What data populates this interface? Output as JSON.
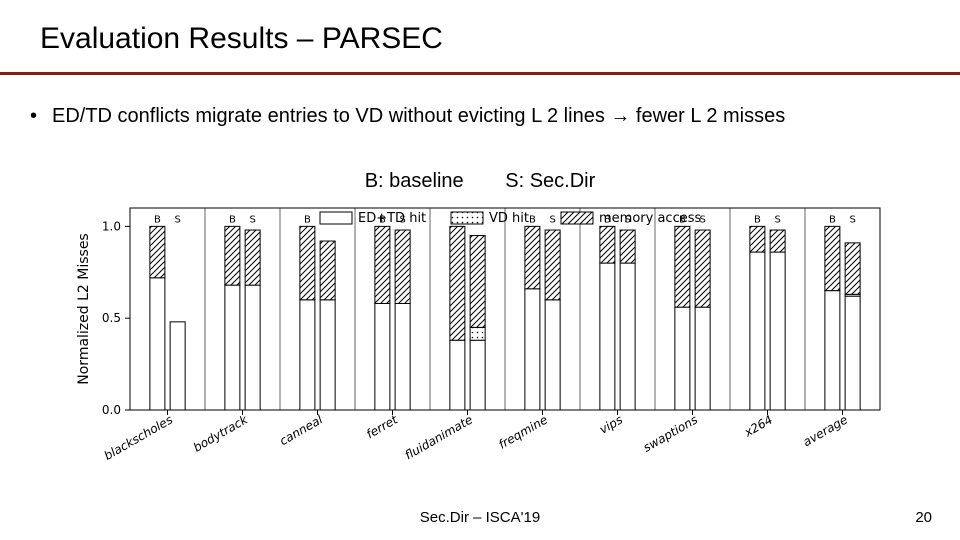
{
  "title": "Evaluation Results – PARSEC",
  "bullet": "ED/TD conflicts migrate entries to VD without evicting L 2 lines → fewer L 2 misses",
  "key": {
    "b": "B: baseline",
    "s": "S: Sec.Dir"
  },
  "footer": {
    "center": "Sec.Dir – ISCA'19",
    "page": "20"
  },
  "accent": "#8b1a1a",
  "chart": {
    "type": "stacked-bar",
    "ylabel": "Normalized L2 Misses",
    "ylim": [
      0.0,
      1.1
    ],
    "yticks": [
      0.0,
      0.5,
      1.0
    ],
    "legend": [
      "ED+TD hit",
      "VD hit",
      "memory access"
    ],
    "legend_fontsize": 13,
    "tick_fontsize": 12,
    "xtick_fontsize": 12,
    "bs_fontsize": 10,
    "bar_width": 0.4,
    "bar_gap": 0.07,
    "border_color": "#000000",
    "background_color": "#ffffff",
    "fill_color": "#ffffff",
    "pattern_colors": {
      "hatch": "#000000",
      "dots": "#000000"
    },
    "xlabels": [
      "blackscholes",
      "bodytrack",
      "canneal",
      "ferret",
      "fluidanimate",
      "freqmine",
      "vips",
      "swaptions",
      "x264",
      "average"
    ],
    "xlabel_rotation": 30,
    "bs_label": {
      "b": "B",
      "s": "S"
    },
    "data": [
      {
        "B": [
          0.72,
          0.0,
          0.28
        ],
        "S": [
          0.48,
          0.0,
          0.0
        ]
      },
      {
        "B": [
          0.68,
          0.0,
          0.32
        ],
        "S": [
          0.68,
          0.0,
          0.3
        ]
      },
      {
        "B": [
          0.6,
          0.0,
          0.4
        ],
        "S": [
          0.6,
          0.0,
          0.32
        ]
      },
      {
        "B": [
          0.58,
          0.0,
          0.42
        ],
        "S": [
          0.58,
          0.0,
          0.4
        ]
      },
      {
        "B": [
          0.38,
          0.0,
          0.62
        ],
        "S": [
          0.38,
          0.07,
          0.5
        ]
      },
      {
        "B": [
          0.66,
          0.0,
          0.34
        ],
        "S": [
          0.6,
          0.0,
          0.38
        ]
      },
      {
        "B": [
          0.8,
          0.0,
          0.2
        ],
        "S": [
          0.8,
          0.0,
          0.18
        ]
      },
      {
        "B": [
          0.56,
          0.0,
          0.44
        ],
        "S": [
          0.56,
          0.0,
          0.42
        ]
      },
      {
        "B": [
          0.86,
          0.0,
          0.14
        ],
        "S": [
          0.86,
          0.0,
          0.12
        ]
      },
      {
        "B": [
          0.65,
          0.0,
          0.35
        ],
        "S": [
          0.62,
          0.01,
          0.28
        ]
      }
    ]
  }
}
